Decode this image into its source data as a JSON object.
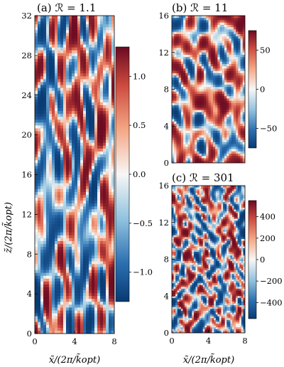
{
  "chart_data": [
    {
      "type": "heatmap",
      "panel_label": "(a)",
      "title": "ℛ = 1.1",
      "xlabel": "x̃/(2π/k̃opt)",
      "ylabel": "z̃/(2π/k̃opt)",
      "xlim": [
        0,
        8
      ],
      "ylim": [
        0,
        32
      ],
      "xticks": [
        "0",
        "4",
        "8"
      ],
      "yticks": [
        "0",
        "4",
        "8",
        "12",
        "16",
        "20",
        "24",
        "28",
        "32"
      ],
      "colorbar": {
        "range": [
          -1.3,
          1.3
        ],
        "ticks": [
          "1.0",
          "0.5",
          "0.0",
          "−0.5",
          "−1.0"
        ],
        "tick_values": [
          1.0,
          0.5,
          0.0,
          -0.5,
          -1.0
        ]
      },
      "colormap": "RdBu_r"
    },
    {
      "type": "heatmap",
      "panel_label": "(b)",
      "title": "ℛ = 11",
      "xlim": [
        0,
        8
      ],
      "ylim": [
        0,
        16
      ],
      "xticks": [
        "0",
        "4",
        "8"
      ],
      "yticks": [
        "0",
        "4",
        "8",
        "12",
        "16"
      ],
      "colorbar": {
        "range": [
          -75,
          75
        ],
        "ticks": [
          "50",
          "0",
          "−50"
        ],
        "tick_values": [
          50,
          0,
          -50
        ]
      },
      "colormap": "RdBu_r"
    },
    {
      "type": "heatmap",
      "panel_label": "(c)",
      "title": "ℛ = 301",
      "xlabel": "x̃/(2π/k̃opt)",
      "xlim": [
        0,
        8
      ],
      "ylim": [
        0,
        16
      ],
      "xticks": [
        "0",
        "4",
        "8"
      ],
      "yticks": [
        "0",
        "4",
        "8",
        "12",
        "16"
      ],
      "colorbar": {
        "range": [
          -550,
          550
        ],
        "ticks": [
          "400",
          "200",
          "0",
          "−200",
          "−400"
        ],
        "tick_values": [
          400,
          200,
          0,
          -200,
          -400
        ]
      },
      "colormap": "RdBu_r"
    }
  ]
}
